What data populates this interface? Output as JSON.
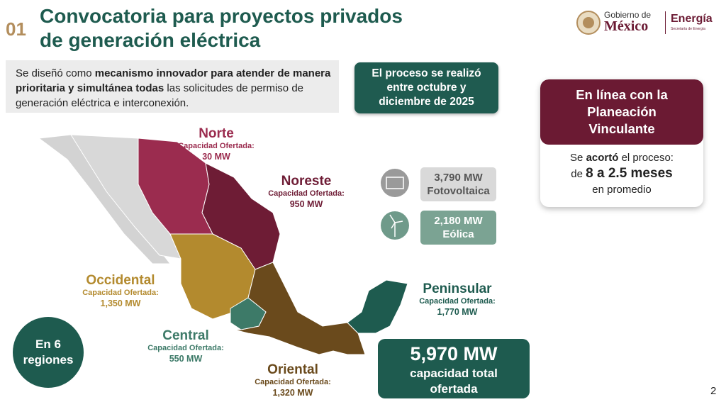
{
  "header": {
    "number": "01",
    "title_lines": [
      "Convocatoria para proyectos privados",
      "de generación eléctrica"
    ]
  },
  "logo": {
    "line1": "Gobierno de",
    "line2": "México",
    "ministry": "Energía",
    "ministry_sub": "Secretaría de Energía"
  },
  "intro": {
    "segments": [
      {
        "text": "Se diseñó como ",
        "bold": false
      },
      {
        "text": "mecanismo innovador para atender de manera prioritaria y simultánea todas",
        "bold": true
      },
      {
        "text": " las solicitudes de permiso de generación eléctrica e interconexión.",
        "bold": false
      }
    ]
  },
  "process": {
    "text": "El proceso se realizó entre octubre y diciembre de 2025"
  },
  "planning": {
    "title": "En línea con la Planeación Vinculante",
    "segments": [
      {
        "text": "Se ",
        "bold": false
      },
      {
        "text": "acortó",
        "bold": true
      },
      {
        "text": " el proceso:",
        "bold": false
      }
    ],
    "range_prefix": "de ",
    "range": "8 a 2.5 meses",
    "suffix": "en promedio"
  },
  "technologies": [
    {
      "capacity": "3,790 MW",
      "name": "Fotovoltaica",
      "box_color": "#d9d9d9",
      "text_color": "#555555"
    },
    {
      "capacity": "2,180 MW",
      "name": "Eólica",
      "box_color": "#7ba393",
      "text_color": "#ffffff"
    }
  ],
  "regions": [
    {
      "name": "Norte",
      "label": "Capacidad Ofertada:",
      "capacity": "30 MW",
      "color": "#9b2c4f"
    },
    {
      "name": "Noreste",
      "label": "Capacidad Ofertada:",
      "capacity": "950 MW",
      "color": "#6e1c35"
    },
    {
      "name": "Occidental",
      "label": "Capacidad Ofertada:",
      "capacity": "1,350 MW",
      "color": "#b38a2e"
    },
    {
      "name": "Central",
      "label": "Capacidad Ofertada:",
      "capacity": "550 MW",
      "color": "#3d7a68"
    },
    {
      "name": "Oriental",
      "label": "Capacidad Ofertada:",
      "capacity": "1,320 MW",
      "color": "#6a4a1c"
    },
    {
      "name": "Peninsular",
      "label": "Capacidad Ofertada:",
      "capacity": "1,770 MW",
      "color": "#1e5b4f"
    }
  ],
  "total": {
    "capacity": "5,970 MW",
    "text": "capacidad total ofertada"
  },
  "badge": {
    "text": "En 6 regiones"
  },
  "page_number": "2"
}
